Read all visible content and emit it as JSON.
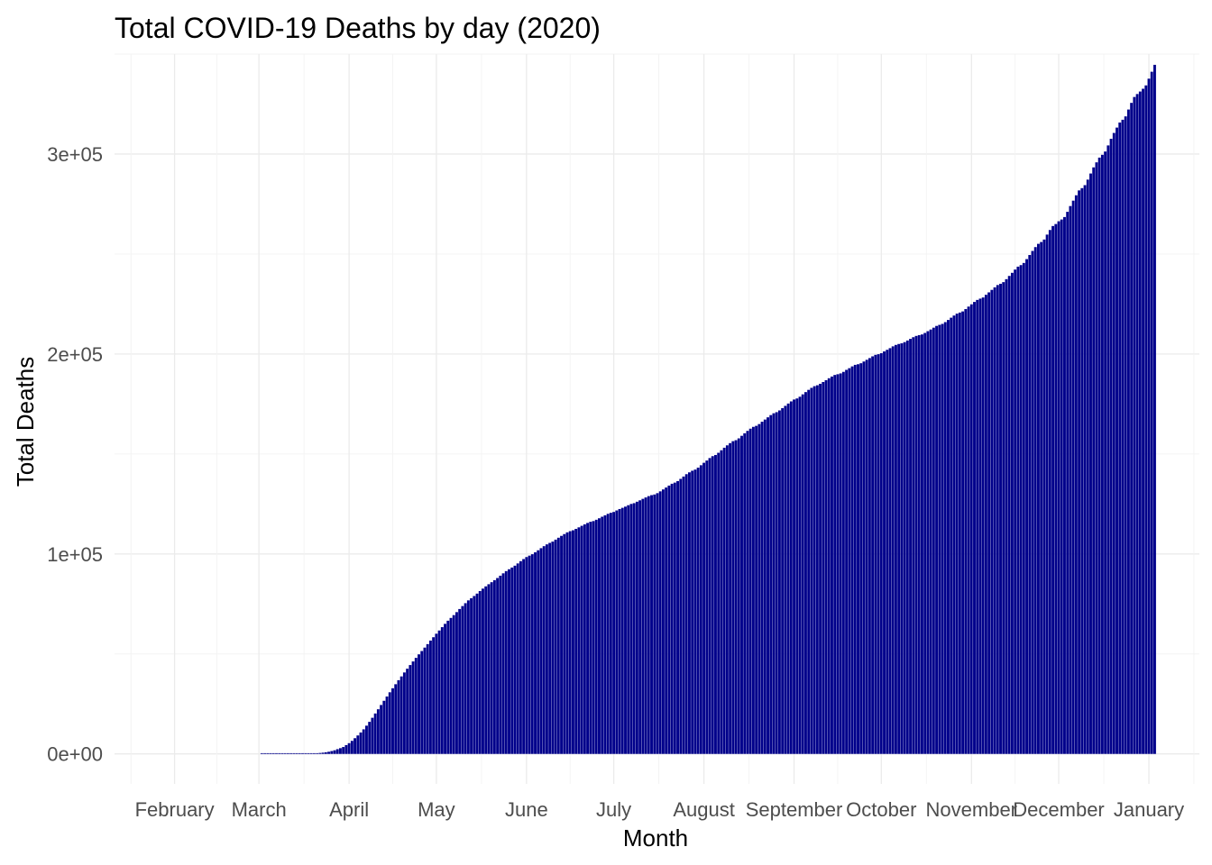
{
  "chart_data": {
    "type": "bar",
    "title": "Total COVID-19 Deaths by day (2020)",
    "xlabel": "Month",
    "ylabel": "Total Deaths",
    "x_ticks": [
      "February",
      "March",
      "April",
      "May",
      "June",
      "July",
      "August",
      "September",
      "October",
      "November",
      "December",
      "January"
    ],
    "y_ticks": [
      "0e+00",
      "1e+05",
      "2e+05",
      "3e+05"
    ],
    "y_tick_values": [
      0,
      100000,
      200000,
      300000
    ],
    "ylim": [
      -15000,
      350000
    ],
    "grid": true,
    "legend": "none",
    "bar_color": "#00008B",
    "x_start_date": "2020-02-29",
    "x_end_date": "2021-01-01",
    "series": [
      {
        "x_start": "2020-03-02",
        "values": [
          6,
          9,
          11,
          12,
          15,
          19,
          22,
          26,
          31,
          38,
          41,
          50,
          60,
          77,
          98,
          116,
          150,
          208,
          270,
          366,
          471,
          617,
          816,
          1070,
          1425,
          1811,
          2366,
          2878,
          3442,
          4408,
          5365,
          6526,
          7856,
          9231,
          10710,
          12298,
          14122,
          16035,
          18067,
          20209,
          22333,
          24465,
          26565,
          28696,
          30821,
          32831,
          34853,
          36858,
          38755,
          40733,
          42602,
          44438,
          46240,
          48041,
          49786,
          51453,
          53163,
          54903,
          56685,
          58349,
          60101,
          61711,
          63390,
          65052,
          66606,
          68003,
          69408,
          70904,
          72461,
          73932,
          75373,
          76782,
          77848,
          78968,
          80170,
          81447,
          82668,
          83783,
          84851,
          85868,
          86887,
          87961,
          89125,
          90311,
          91428,
          92350,
          93212,
          94129,
          95251,
          96386,
          97444,
          98434,
          99155,
          99856,
          100825,
          101833,
          102880,
          103893,
          104787,
          105526,
          106186,
          107153,
          108108,
          109043,
          109931,
          110795,
          111394,
          111838,
          112542,
          113302,
          114071,
          114811,
          115506,
          116081,
          116435,
          117097,
          117839,
          118613,
          119323,
          120070,
          120597,
          120998,
          121752,
          122459,
          123064,
          123668,
          124373,
          125015,
          125398,
          126117,
          126816,
          127556,
          128251,
          128925,
          129408,
          129730,
          130398,
          131302,
          132265,
          133222,
          134189,
          135103,
          135670,
          136439,
          137547,
          138712,
          139885,
          140807,
          141611,
          142188,
          143165,
          144362,
          145580,
          146721,
          147955,
          148914,
          149491,
          150588,
          151855,
          153121,
          154309,
          155419,
          156399,
          156894,
          157804,
          159084,
          160351,
          161541,
          162650,
          163557,
          164061,
          164947,
          166138,
          167210,
          168326,
          169443,
          170349,
          170903,
          171775,
          172904,
          174062,
          175213,
          176293,
          177234,
          177761,
          178625,
          179814,
          180941,
          182069,
          183063,
          183901,
          184356,
          185094,
          185991,
          186902,
          187872,
          188730,
          189510,
          189867,
          190283,
          191054,
          192066,
          192895,
          193797,
          194575,
          194876,
          195364,
          196238,
          197102,
          197958,
          198827,
          199574,
          199895,
          200399,
          201288,
          202096,
          202924,
          203829,
          204536,
          205006,
          205342,
          205933,
          206741,
          207559,
          208387,
          209036,
          209446,
          209774,
          210516,
          211407,
          212241,
          213157,
          214040,
          214568,
          215044,
          215947,
          217026,
          218149,
          219230,
          220192,
          220723,
          221288,
          222456,
          223706,
          224833,
          226036,
          227040,
          227686,
          228271,
          229599,
          230814,
          232062,
          233328,
          234478,
          235116,
          235932,
          237420,
          239040,
          240595,
          242221,
          243678,
          244457,
          245531,
          247448,
          249499,
          251529,
          253461,
          255097,
          256002,
          257242,
          259708,
          262011,
          263998,
          264990,
          266364,
          267262,
          268486,
          271098,
          273980,
          276691,
          279381,
          281804,
          282938,
          284440,
          287208,
          290262,
          293329,
          295840,
          298212,
          299613,
          301257,
          304309,
          307612,
          310553,
          313226,
          315768,
          317147,
          318829,
          322254,
          325591,
          328526,
          330008,
          331269,
          332649,
          334327,
          337685,
          341163,
          344621
        ]
      }
    ]
  }
}
